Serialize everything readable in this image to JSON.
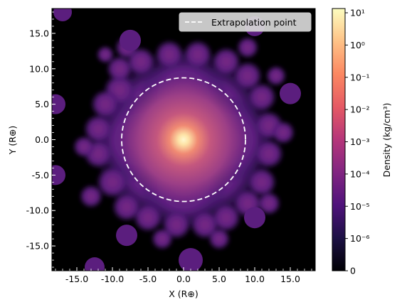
{
  "chart_data": {
    "type": "heatmap",
    "xlabel": "X (R⊕)",
    "ylabel": "Y (R⊕)",
    "xlim": [
      -18.5,
      18.5
    ],
    "ylim": [
      -18.5,
      18.5
    ],
    "xticks": [
      {
        "value": -15,
        "label": "-15.0"
      },
      {
        "value": -10,
        "label": "-10.0"
      },
      {
        "value": -5,
        "label": "-5.0"
      },
      {
        "value": 0,
        "label": "0.0"
      },
      {
        "value": 5,
        "label": "5.0"
      },
      {
        "value": 10,
        "label": "10.0"
      },
      {
        "value": 15,
        "label": "15.0"
      }
    ],
    "yticks": [
      {
        "value": 15,
        "label": "15.0"
      },
      {
        "value": 10,
        "label": "10.0"
      },
      {
        "value": 5,
        "label": "5.0"
      },
      {
        "value": 0,
        "label": "0.0"
      },
      {
        "value": -5,
        "label": "-5.0"
      },
      {
        "value": -10,
        "label": "-10.0"
      },
      {
        "value": -15,
        "label": "-15.0"
      }
    ],
    "extrapolation_circle": {
      "center": [
        0,
        0
      ],
      "radius": 8.7
    },
    "legend": {
      "placement": "top-right",
      "entries": [
        {
          "label": "Extrapolation point",
          "style": "dashed",
          "color": "#ffffff"
        }
      ]
    },
    "colorbar": {
      "label": "Density (kg/cm³)",
      "scale": "symlog",
      "ticks": [
        {
          "value": "1e1",
          "label": "10¹"
        },
        {
          "value": "1e0",
          "label": "10⁰"
        },
        {
          "value": "1e-1",
          "label": "10⁻¹"
        },
        {
          "value": "1e-2",
          "label": "10⁻²"
        },
        {
          "value": "1e-3",
          "label": "10⁻³"
        },
        {
          "value": "1e-4",
          "label": "10⁻⁴"
        },
        {
          "value": "1e-5",
          "label": "10⁻⁵"
        },
        {
          "value": "1e-6",
          "label": "10⁻⁶"
        },
        {
          "value": "0",
          "label": "0"
        }
      ],
      "colormap": "magma",
      "colors": [
        "#000004",
        "#1c1044",
        "#4f127b",
        "#812581",
        "#b5367a",
        "#e55964",
        "#fb8761",
        "#fec287",
        "#fcfdbf"
      ]
    },
    "background_color": "#000000"
  }
}
